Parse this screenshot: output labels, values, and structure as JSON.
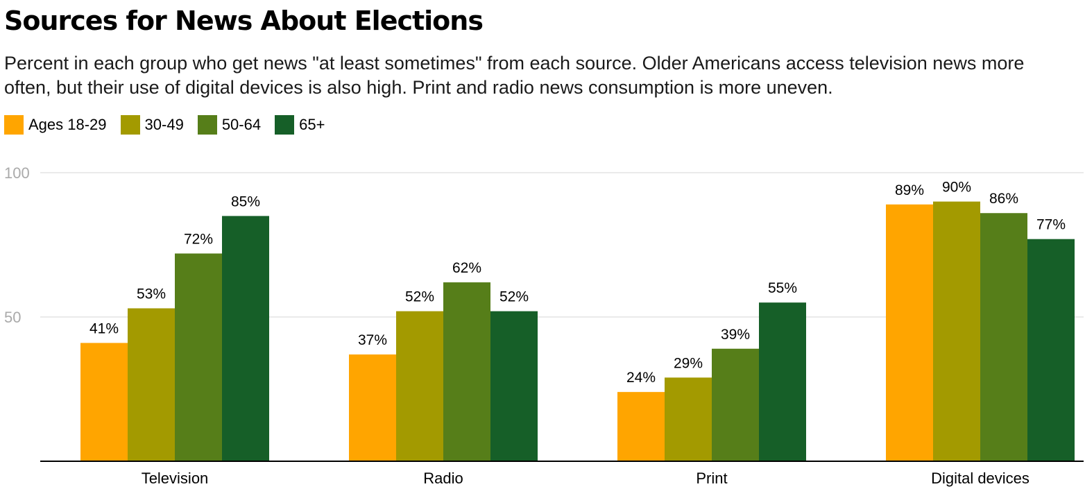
{
  "chart_data": {
    "type": "bar",
    "title": "Sources for News About Elections",
    "subtitle": "Percent in each group who get news \"at least sometimes\" from each source. Older Americans access television news more often, but their use of digital devices is also high. Print and radio news consumption is more uneven.",
    "categories": [
      "Television",
      "Radio",
      "Print",
      "Digital devices"
    ],
    "series": [
      {
        "name": "Ages 18-29",
        "color": "#ffa500",
        "values": [
          41,
          37,
          24,
          89
        ]
      },
      {
        "name": "30-49",
        "color": "#a39a00",
        "values": [
          53,
          52,
          29,
          90
        ]
      },
      {
        "name": "50-64",
        "color": "#567e19",
        "values": [
          72,
          62,
          39,
          86
        ]
      },
      {
        "name": "65+",
        "color": "#165f28",
        "values": [
          85,
          52,
          55,
          77
        ]
      }
    ],
    "ylim": [
      0,
      100
    ],
    "yticks": [
      50,
      100
    ],
    "value_suffix": "%",
    "grid": true,
    "legend": "top-left",
    "xlabel": "",
    "ylabel": ""
  }
}
